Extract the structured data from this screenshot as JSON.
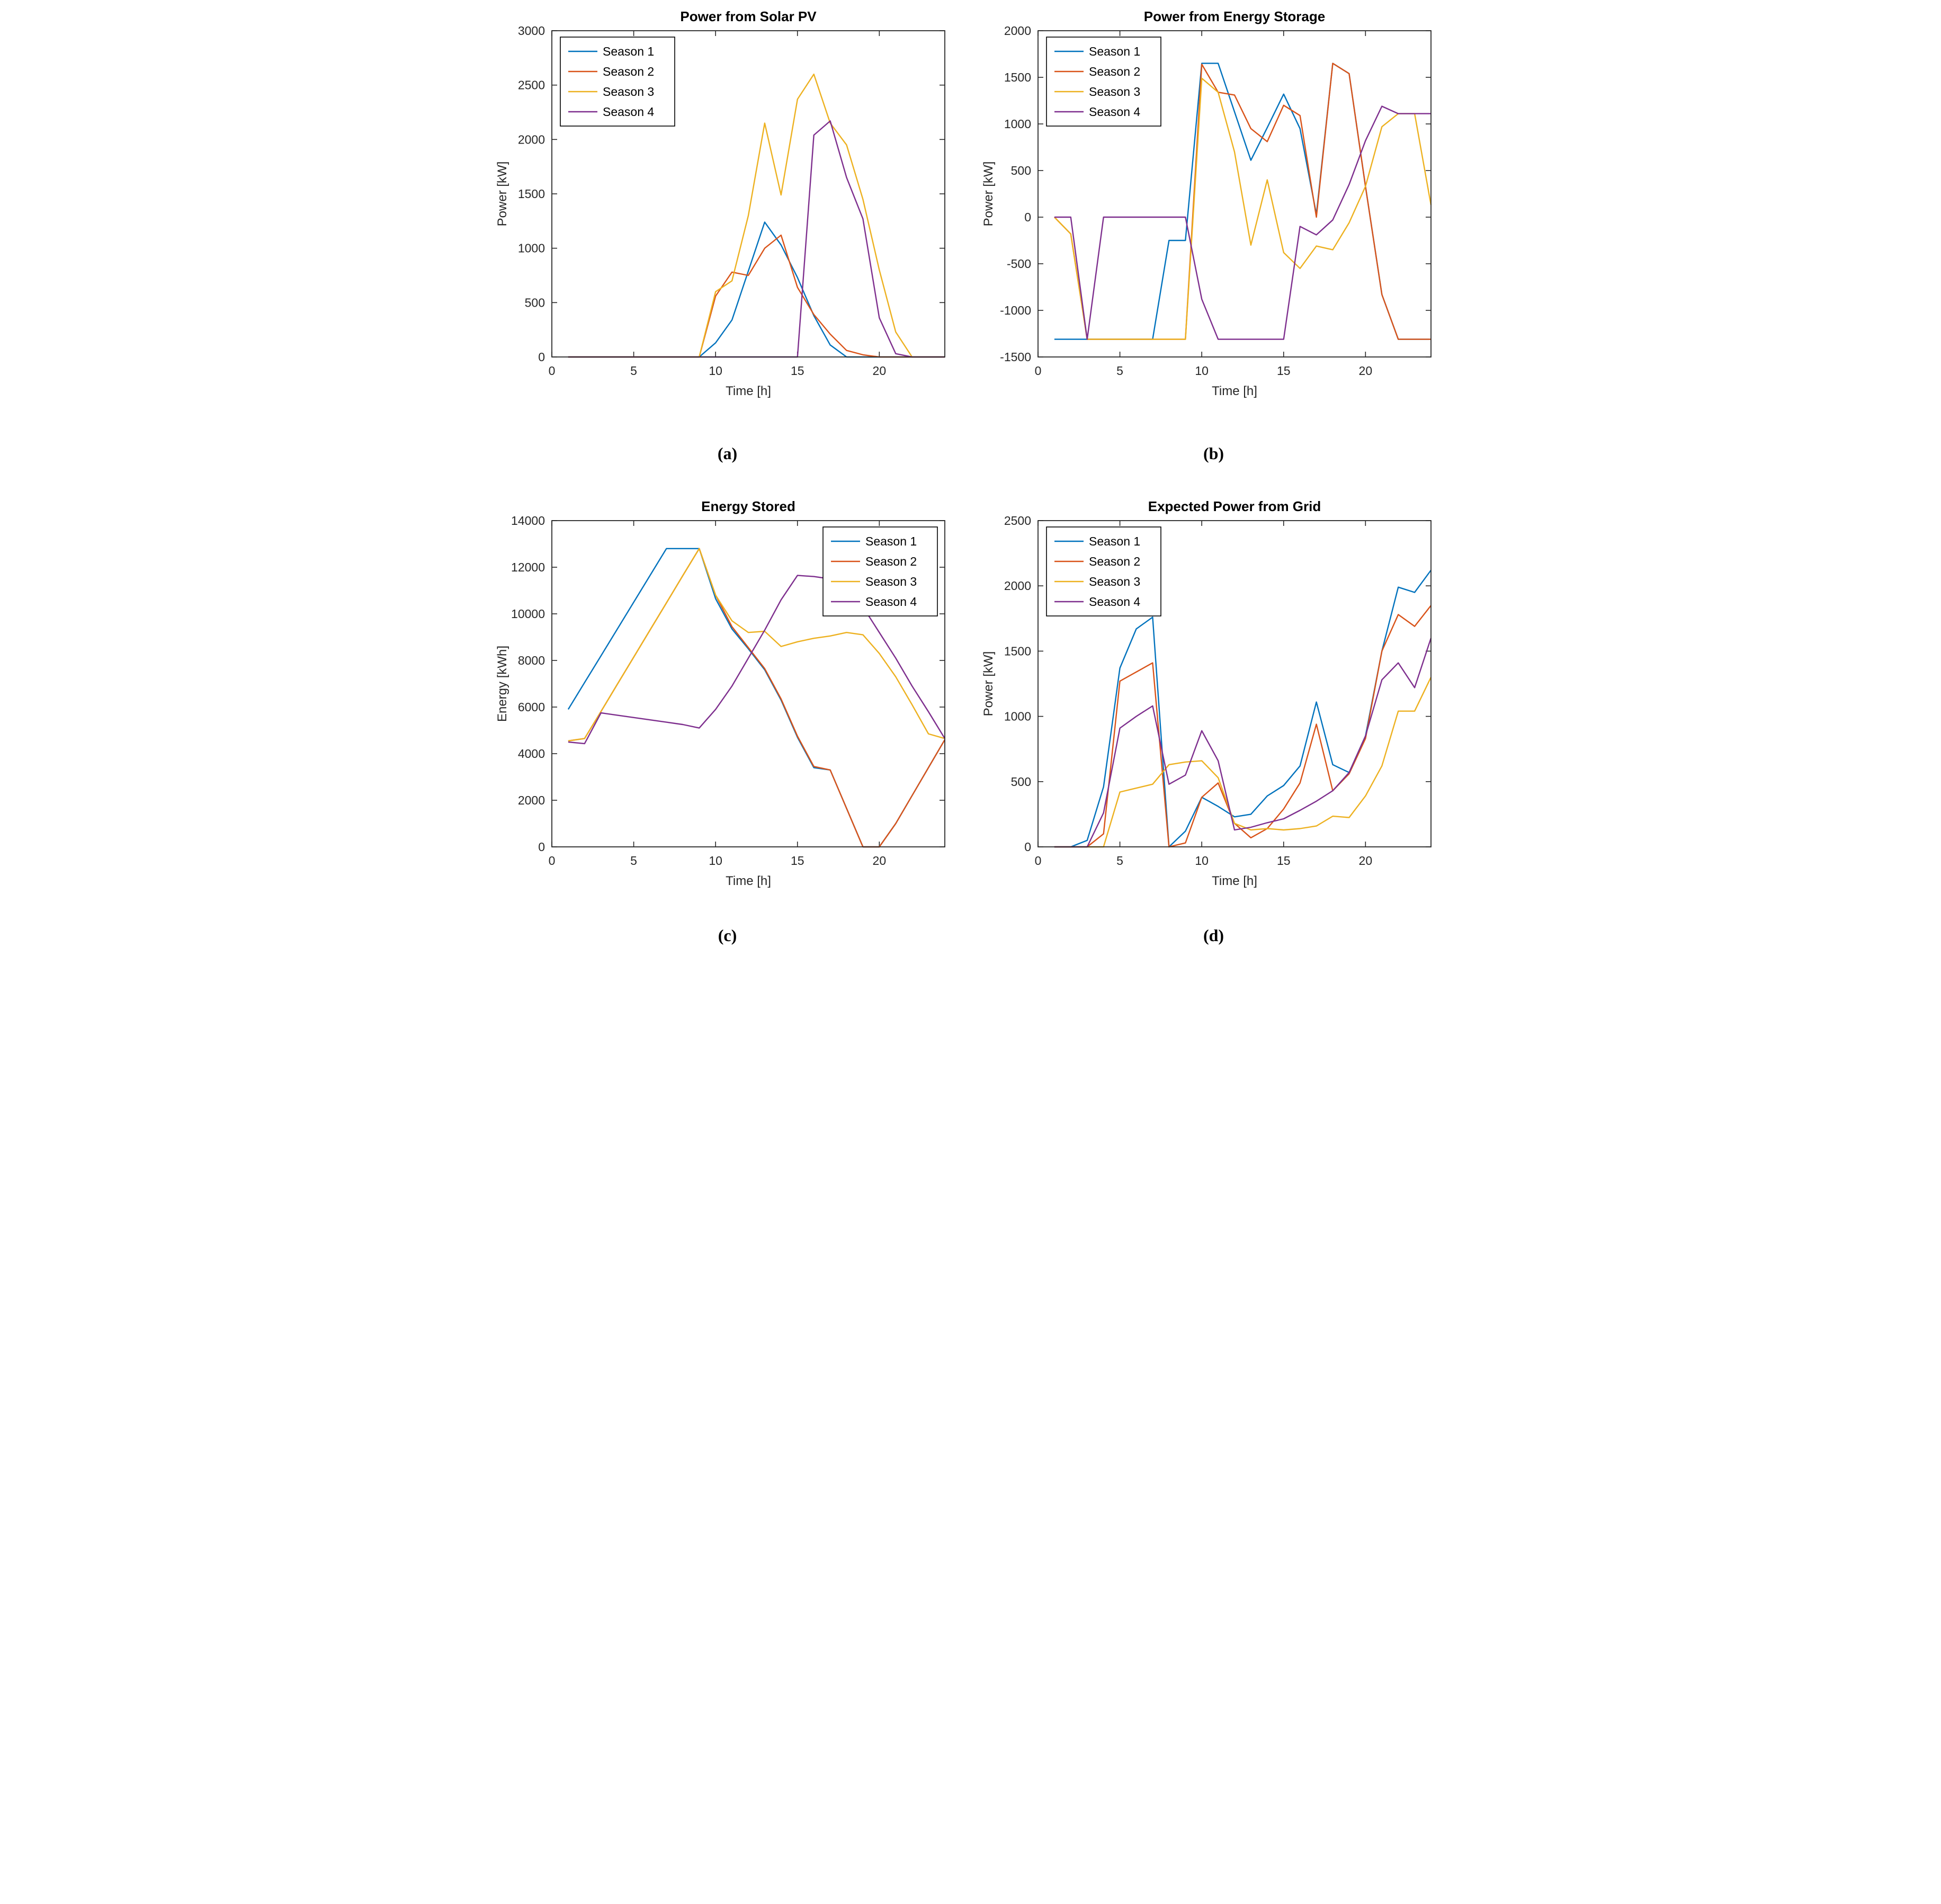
{
  "figure": {
    "background": "#ffffff",
    "axis_color": "#262626",
    "title_color": "#000000"
  },
  "captions": {
    "a": "(a)",
    "b": "(b)",
    "c": "(c)",
    "d": "(d)"
  },
  "legend_labels": [
    "Season 1",
    "Season 2",
    "Season 3",
    "Season 4"
  ],
  "palette": {
    "season1": "#0072BD",
    "season2": "#D95319",
    "season3": "#EDB120",
    "season4": "#7E2F8E"
  },
  "chart_data": [
    {
      "id": "solar-pv",
      "type": "line",
      "title": "Power from Solar PV",
      "xlabel": "Time [h]",
      "ylabel": "Power [kW]",
      "xlim": [
        0,
        24
      ],
      "ylim": [
        0,
        3000
      ],
      "xticks": [
        0,
        5,
        10,
        15,
        20
      ],
      "yticks": [
        0,
        500,
        1000,
        1500,
        2000,
        2500,
        3000
      ],
      "grid": false,
      "legend_position": "top-left",
      "x": [
        1,
        2,
        3,
        4,
        5,
        6,
        7,
        8,
        9,
        10,
        11,
        12,
        13,
        14,
        15,
        16,
        17,
        18,
        19,
        20,
        21,
        22,
        23,
        24
      ],
      "series": [
        {
          "name": "Season 1",
          "color": "#0072BD",
          "values": [
            0,
            0,
            0,
            0,
            0,
            0,
            0,
            0,
            0,
            130,
            340,
            790,
            1240,
            1030,
            730,
            380,
            110,
            0,
            0,
            0,
            0,
            0,
            0,
            0
          ]
        },
        {
          "name": "Season 2",
          "color": "#D95319",
          "values": [
            0,
            0,
            0,
            0,
            0,
            0,
            0,
            0,
            0,
            560,
            780,
            750,
            1000,
            1120,
            640,
            390,
            210,
            60,
            20,
            0,
            0,
            0,
            0,
            0
          ]
        },
        {
          "name": "Season 3",
          "color": "#EDB120",
          "values": [
            0,
            0,
            0,
            0,
            0,
            0,
            0,
            0,
            0,
            600,
            700,
            1300,
            2150,
            1490,
            2370,
            2600,
            2150,
            1950,
            1450,
            800,
            230,
            0,
            0,
            0
          ]
        },
        {
          "name": "Season 4",
          "color": "#7E2F8E",
          "values": [
            0,
            0,
            0,
            0,
            0,
            0,
            0,
            0,
            0,
            0,
            0,
            0,
            0,
            0,
            0,
            2040,
            2170,
            1650,
            1270,
            360,
            30,
            0,
            0,
            0
          ]
        }
      ]
    },
    {
      "id": "energy-storage",
      "type": "line",
      "title": "Power from Energy Storage",
      "xlabel": "Time [h]",
      "ylabel": "Power [kW]",
      "xlim": [
        0,
        24
      ],
      "ylim": [
        -1500,
        2000
      ],
      "xticks": [
        0,
        5,
        10,
        15,
        20
      ],
      "yticks": [
        -1500,
        -1000,
        -500,
        0,
        500,
        1000,
        1500,
        2000
      ],
      "grid": false,
      "legend_position": "top-left",
      "x": [
        1,
        2,
        3,
        4,
        5,
        6,
        7,
        8,
        9,
        10,
        11,
        12,
        13,
        14,
        15,
        16,
        17,
        18,
        19,
        20,
        21,
        22,
        23,
        24
      ],
      "series": [
        {
          "name": "Season 1",
          "color": "#0072BD",
          "values": [
            -1310,
            -1310,
            -1310,
            -1310,
            -1310,
            -1310,
            -1310,
            -250,
            -250,
            1650,
            1650,
            1130,
            610,
            960,
            1320,
            950,
            30,
            1650,
            1540,
            330,
            -830,
            -1310,
            -1310,
            -1310
          ]
        },
        {
          "name": "Season 2",
          "color": "#D95319",
          "values": [
            0,
            -180,
            -1310,
            -1310,
            -1310,
            -1310,
            -1310,
            -1310,
            -1310,
            1640,
            1340,
            1310,
            950,
            810,
            1200,
            1090,
            0,
            1650,
            1540,
            330,
            -830,
            -1310,
            -1310,
            -1310
          ]
        },
        {
          "name": "Season 3",
          "color": "#EDB120",
          "values": [
            0,
            -180,
            -1310,
            -1310,
            -1310,
            -1310,
            -1310,
            -1310,
            -1310,
            1490,
            1340,
            700,
            -300,
            400,
            -380,
            -550,
            -310,
            -350,
            -60,
            330,
            970,
            1110,
            1110,
            130
          ]
        },
        {
          "name": "Season 4",
          "color": "#7E2F8E",
          "values": [
            0,
            0,
            -1310,
            0,
            0,
            0,
            0,
            0,
            0,
            -880,
            -1310,
            -1310,
            -1310,
            -1310,
            -1310,
            -100,
            -190,
            -30,
            350,
            820,
            1190,
            1110,
            1110,
            1110
          ]
        }
      ]
    },
    {
      "id": "energy-stored",
      "type": "line",
      "title": "Energy Stored",
      "xlabel": "Time [h]",
      "ylabel": "Energy [kWh]",
      "xlim": [
        0,
        24
      ],
      "ylim": [
        0,
        14000
      ],
      "xticks": [
        0,
        5,
        10,
        15,
        20
      ],
      "yticks": [
        0,
        2000,
        4000,
        6000,
        8000,
        10000,
        12000,
        14000
      ],
      "grid": false,
      "legend_position": "top-right",
      "x": [
        1,
        2,
        3,
        4,
        5,
        6,
        7,
        8,
        9,
        10,
        11,
        12,
        13,
        14,
        15,
        16,
        17,
        18,
        19,
        20,
        21,
        22,
        23,
        24
      ],
      "series": [
        {
          "name": "Season 1",
          "color": "#0072BD",
          "values": [
            5900,
            7050,
            8200,
            9350,
            10500,
            11650,
            12800,
            12800,
            12800,
            10650,
            9350,
            8500,
            7600,
            6300,
            4700,
            3400,
            3300,
            1650,
            0,
            0,
            1000,
            2200,
            3400,
            4600
          ]
        },
        {
          "name": "Season 2",
          "color": "#D95319",
          "values": [
            4550,
            4650,
            5810,
            6980,
            8140,
            9310,
            10470,
            11640,
            12800,
            10800,
            9450,
            8550,
            7650,
            6350,
            4750,
            3450,
            3300,
            1650,
            0,
            0,
            1000,
            2200,
            3400,
            4600
          ]
        },
        {
          "name": "Season 3",
          "color": "#EDB120",
          "values": [
            4550,
            4650,
            5810,
            6980,
            8140,
            9310,
            10470,
            11640,
            12800,
            10800,
            9700,
            9200,
            9250,
            8600,
            8800,
            8950,
            9050,
            9200,
            9100,
            8300,
            7300,
            6100,
            4850,
            4650
          ]
        },
        {
          "name": "Season 4",
          "color": "#7E2F8E",
          "values": [
            4500,
            4430,
            5750,
            5650,
            5550,
            5450,
            5350,
            5250,
            5100,
            5900,
            6900,
            8100,
            9300,
            10600,
            11650,
            11600,
            11500,
            11400,
            10300,
            9200,
            8100,
            6900,
            5800,
            4650
          ]
        }
      ]
    },
    {
      "id": "grid-power",
      "type": "line",
      "title": "Expected Power from Grid",
      "xlabel": "Time [h]",
      "ylabel": "Power [kW]",
      "xlim": [
        0,
        24
      ],
      "ylim": [
        0,
        2500
      ],
      "xticks": [
        0,
        5,
        10,
        15,
        20
      ],
      "yticks": [
        0,
        500,
        1000,
        1500,
        2000,
        2500
      ],
      "grid": false,
      "legend_position": "top-left",
      "x": [
        1,
        2,
        3,
        4,
        5,
        6,
        7,
        8,
        9,
        10,
        11,
        12,
        13,
        14,
        15,
        16,
        17,
        18,
        19,
        20,
        21,
        22,
        23,
        24
      ],
      "series": [
        {
          "name": "Season 1",
          "color": "#0072BD",
          "values": [
            0,
            0,
            50,
            460,
            1370,
            1670,
            1760,
            0,
            120,
            380,
            310,
            230,
            250,
            390,
            470,
            620,
            1110,
            630,
            570,
            850,
            1500,
            1990,
            1950,
            2120
          ]
        },
        {
          "name": "Season 2",
          "color": "#D95319",
          "values": [
            0,
            0,
            0,
            100,
            1270,
            1340,
            1410,
            0,
            30,
            380,
            490,
            180,
            70,
            140,
            290,
            490,
            940,
            430,
            560,
            830,
            1500,
            1780,
            1690,
            1850
          ]
        },
        {
          "name": "Season 3",
          "color": "#EDB120",
          "values": [
            0,
            0,
            0,
            0,
            420,
            450,
            480,
            630,
            650,
            660,
            530,
            180,
            130,
            140,
            130,
            140,
            160,
            235,
            225,
            390,
            620,
            1040,
            1040,
            1300
          ]
        },
        {
          "name": "Season 4",
          "color": "#7E2F8E",
          "values": [
            0,
            0,
            0,
            260,
            910,
            1000,
            1080,
            480,
            550,
            890,
            660,
            130,
            150,
            185,
            215,
            280,
            350,
            430,
            570,
            850,
            1280,
            1410,
            1220,
            1600
          ]
        }
      ]
    }
  ]
}
